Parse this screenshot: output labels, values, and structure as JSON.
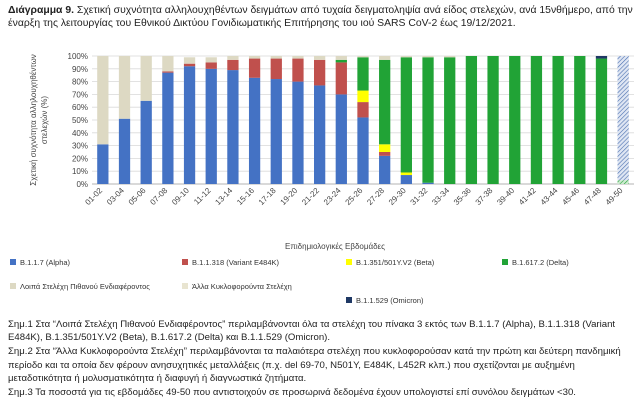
{
  "title": {
    "prefix": "Διάγραμμα 9.",
    "text": "Σχετική συχνότητα αλληλουχηθέντων δειγμάτων από τυχαία δειγματοληψία ανά είδος στελεχών, ανά 15νθήμερο, από την έναρξη της λειτουργίας του Εθνικού Δικτύου Γονιδιωματικής Επιτήρησης του ιού SARS CoV-2 έως 19/12/2021."
  },
  "chart_data": {
    "type": "bar",
    "stacked": true,
    "percent": true,
    "xlabel": "Επιδημιολογικές Εβδομάδες",
    "ylabel": "Σχετική συχνότητα αλληλουχηθέντων στελεχών (%)",
    "ylim": [
      0,
      100
    ],
    "yticks": [
      "0%",
      "10%",
      "20%",
      "30%",
      "40%",
      "50%",
      "60%",
      "70%",
      "80%",
      "90%",
      "100%"
    ],
    "grid": true,
    "legend_position": "bottom",
    "categories": [
      "01-02",
      "03-04",
      "05-06",
      "07-08",
      "09-10",
      "11-12",
      "13-14",
      "15-16",
      "17-18",
      "19-20",
      "21-22",
      "23-24",
      "25-26",
      "27-28",
      "29-30",
      "31-32",
      "33-34",
      "35-36",
      "37-38",
      "39-40",
      "41-42",
      "43-44",
      "45-46",
      "47-48",
      "49-50"
    ],
    "series": [
      {
        "name": "B.1.1.7 (Alpha)",
        "color": "#4472C4",
        "values": [
          31,
          51,
          65,
          87,
          92,
          90,
          89,
          83,
          82,
          80,
          77,
          70,
          52,
          22,
          7,
          1,
          0,
          0,
          0,
          0,
          0,
          0,
          0,
          0,
          0
        ]
      },
      {
        "name": "B.1.1.318 (Variant E484K)",
        "color": "#C0504D",
        "values": [
          0,
          0,
          0,
          1,
          2,
          5,
          8,
          15,
          16,
          18,
          20,
          25,
          12,
          3,
          0,
          0,
          0,
          0,
          0,
          0,
          0,
          0,
          0,
          0,
          0
        ]
      },
      {
        "name": "B.1.351/501Y.V2 (Beta)",
        "color": "#FFFF00",
        "values": [
          0,
          0,
          0,
          0,
          0,
          0,
          0,
          0,
          0,
          0,
          0,
          0,
          9,
          6,
          2,
          0,
          0,
          0,
          0,
          0,
          0,
          0,
          0,
          0,
          0
        ]
      },
      {
        "name": "B.1.617.2 (Delta)",
        "color": "#21A336",
        "values": [
          0,
          0,
          0,
          0,
          0,
          0,
          0,
          0,
          0,
          0,
          0,
          2,
          26,
          66,
          90,
          98,
          99,
          100,
          100,
          100,
          100,
          100,
          100,
          98,
          3
        ]
      },
      {
        "name": "Λοιπά Στελέχη Πιθανού Ενδιαφέροντος",
        "color": "#DDD9C3",
        "values": [
          69,
          49,
          35,
          12,
          5,
          4,
          3,
          2,
          2,
          2,
          3,
          3,
          1,
          3,
          1,
          1,
          1,
          0,
          0,
          0,
          0,
          0,
          0,
          0,
          0
        ]
      },
      {
        "name": "Άλλα Κυκλοφορούντα Στελέχη",
        "color": "#E8E4D0",
        "values": [
          0,
          0,
          0,
          0,
          0,
          0,
          0,
          0,
          0,
          0,
          0,
          0,
          0,
          0,
          0,
          0,
          0,
          0,
          0,
          0,
          0,
          0,
          0,
          0,
          0
        ]
      },
      {
        "name": "B.1.1.529 (Omicron)",
        "color": "#1F3864",
        "values": [
          0,
          0,
          0,
          0,
          0,
          0,
          0,
          0,
          0,
          0,
          0,
          0,
          0,
          0,
          0,
          0,
          0,
          0,
          0,
          0,
          0,
          0,
          0,
          2,
          97
        ]
      }
    ]
  },
  "legend": {
    "items": [
      {
        "label": "B.1.1.7 (Alpha)",
        "color": "#4472C4"
      },
      {
        "label": "B.1.1.318 (Variant E484K)",
        "color": "#C0504D"
      },
      {
        "label": "B.1.351/501Y.V2 (Beta)",
        "color": "#FFFF00"
      },
      {
        "label": "B.1.617.2 (Delta)",
        "color": "#21A336"
      },
      {
        "label": "Λοιπά Στελέχη Πιθανού Ενδιαφέροντος",
        "color": "#DDD9C3"
      },
      {
        "label": "Άλλα Κυκλοφορούντα Στελέχη",
        "color": "#E8E4D0"
      },
      {
        "label": "B.1.1.529 (Omicron)",
        "color": "#1F3864"
      }
    ]
  },
  "notes": [
    "Σημ.1 Στα “Λοιπά Στελέχη Πιθανού Ενδιαφέροντος” περιλαμβάνονται όλα τα στελέχη του πίνακα 3 εκτός των B.1.1.7 (Alpha), B.1.1.318 (Variant E484K), B.1.351/501Y.V2 (Beta), B.1.617.2 (Delta) και B.1.1.529 (Omicron).",
    "Σημ.2 Στα “Άλλα Κυκλοφορούντα Στελέχη” περιλαμβάνονται τα παλαιότερα στελέχη που κυκλοφορούσαν κατά την πρώτη και δεύτερη πανδημική περίοδο και τα οποία δεν φέρουν ανησυχητικές μεταλλάξεις (π.χ. del 69-70, N501Y, E484K, L452R κλπ.) που σχετίζονται με αυξημένη μεταδοτικότητα ή μολυσματικότητα ή διαφυγή ή διαγνωστικά ζητήματα.",
    "Σημ.3 Τα ποσοστά για τις εβδομάδες 49-50 που αντιστοιχούν σε προσωρινά δεδομένα έχουν υπολογιστεί επί συνόλου δειγμάτων <30."
  ]
}
